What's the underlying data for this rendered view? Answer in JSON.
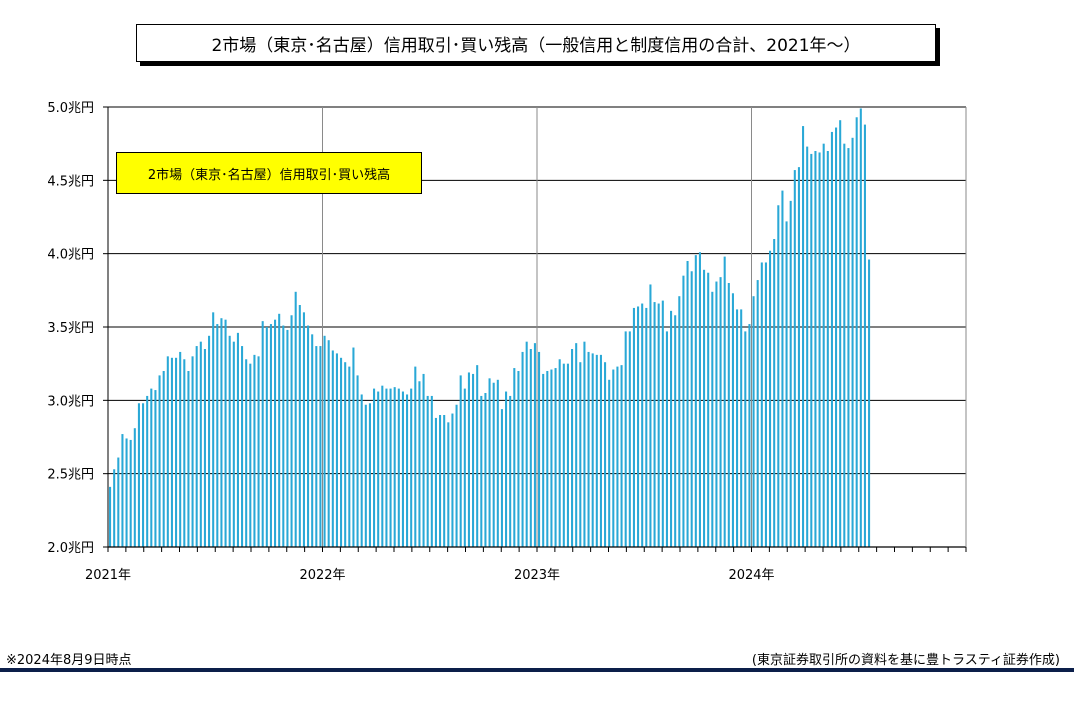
{
  "title": "2市場（東京･名古屋）信用取引･買い残高（一般信用と制度信用の合計、2021年～）",
  "legend_label": "2市場（東京･名古屋）信用取引･買い残高",
  "note_left": "※2024年8月9日時点",
  "note_right": "(東京証券取引所の資料を基に豊トラスティ証券作成)",
  "colors": {
    "bar": "#29a8d6",
    "grid": "#000000",
    "legend_bg": "#ffff00",
    "footer": "#0c1f4a"
  },
  "chart_data": {
    "type": "bar",
    "title": "2市場（東京･名古屋）信用取引･買い残高（一般信用と制度信用の合計、2021年～）",
    "xlabel": "",
    "ylabel": "",
    "ylim": [
      2.0,
      5.0
    ],
    "y_ticks": [
      2.0,
      2.5,
      3.0,
      3.5,
      4.0,
      4.5,
      5.0
    ],
    "y_tick_labels": [
      "2.0兆円",
      "2.5兆円",
      "3.0兆円",
      "3.5兆円",
      "4.0兆円",
      "4.5兆円",
      "5.0兆円"
    ],
    "x_tick_labels": [
      "2021年",
      "2022年",
      "2023年",
      "2024年"
    ],
    "total_weeks": 208,
    "unit": "兆円",
    "grid": true,
    "legend_position": "top-left",
    "series": [
      {
        "name": "2市場（東京･名古屋）信用取引･買い残高",
        "values": [
          2.41,
          2.53,
          2.61,
          2.77,
          2.74,
          2.73,
          2.81,
          2.98,
          2.98,
          3.03,
          3.08,
          3.07,
          3.17,
          3.2,
          3.3,
          3.29,
          3.29,
          3.33,
          3.28,
          3.2,
          3.3,
          3.37,
          3.4,
          3.35,
          3.44,
          3.6,
          3.52,
          3.56,
          3.55,
          3.44,
          3.4,
          3.46,
          3.37,
          3.28,
          3.25,
          3.31,
          3.3,
          3.54,
          3.5,
          3.52,
          3.55,
          3.59,
          3.51,
          3.48,
          3.58,
          3.74,
          3.65,
          3.6,
          3.51,
          3.45,
          3.37,
          3.37,
          3.44,
          3.41,
          3.34,
          3.32,
          3.29,
          3.26,
          3.23,
          3.36,
          3.17,
          3.04,
          2.97,
          2.98,
          3.08,
          3.06,
          3.1,
          3.08,
          3.08,
          3.09,
          3.08,
          3.06,
          3.04,
          3.08,
          3.23,
          3.13,
          3.18,
          3.03,
          3.03,
          2.88,
          2.9,
          2.9,
          2.85,
          2.91,
          2.97,
          3.17,
          3.08,
          3.19,
          3.18,
          3.24,
          3.03,
          3.05,
          3.15,
          3.12,
          3.14,
          2.94,
          3.06,
          3.03,
          3.22,
          3.2,
          3.33,
          3.4,
          3.35,
          3.39,
          3.33,
          3.18,
          3.2,
          3.21,
          3.22,
          3.28,
          3.25,
          3.25,
          3.35,
          3.39,
          3.26,
          3.4,
          3.33,
          3.32,
          3.31,
          3.31,
          3.26,
          3.14,
          3.21,
          3.23,
          3.24,
          3.47,
          3.47,
          3.63,
          3.64,
          3.66,
          3.63,
          3.79,
          3.67,
          3.66,
          3.68,
          3.47,
          3.61,
          3.58,
          3.71,
          3.85,
          3.95,
          3.88,
          3.99,
          4.01,
          3.89,
          3.87,
          3.74,
          3.81,
          3.84,
          3.98,
          3.8,
          3.73,
          3.62,
          3.62,
          3.47,
          3.52,
          3.71,
          3.82,
          3.94,
          3.94,
          4.02,
          4.1,
          4.33,
          4.43,
          4.22,
          4.36,
          4.57,
          4.59,
          4.87,
          4.73,
          4.68,
          4.7,
          4.69,
          4.75,
          4.7,
          4.83,
          4.86,
          4.91,
          4.75,
          4.72,
          4.79,
          4.93,
          4.99,
          4.88,
          3.96
        ]
      }
    ]
  }
}
